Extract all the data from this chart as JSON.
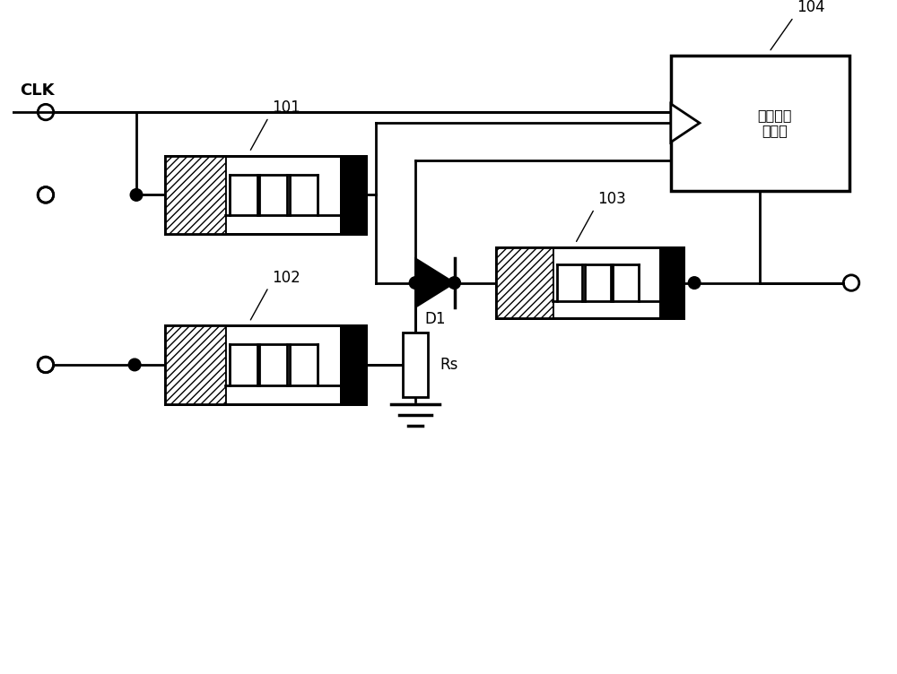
{
  "bg_color": "#ffffff",
  "line_color": "#000000",
  "line_width": 2.0,
  "label_101": "101",
  "label_102": "102",
  "label_103": "103",
  "label_104": "104",
  "label_clk": "CLK",
  "label_d1": "D1",
  "label_rs": "Rs",
  "label_converter": "第一电压\n转换器",
  "hatch_pattern": "////"
}
